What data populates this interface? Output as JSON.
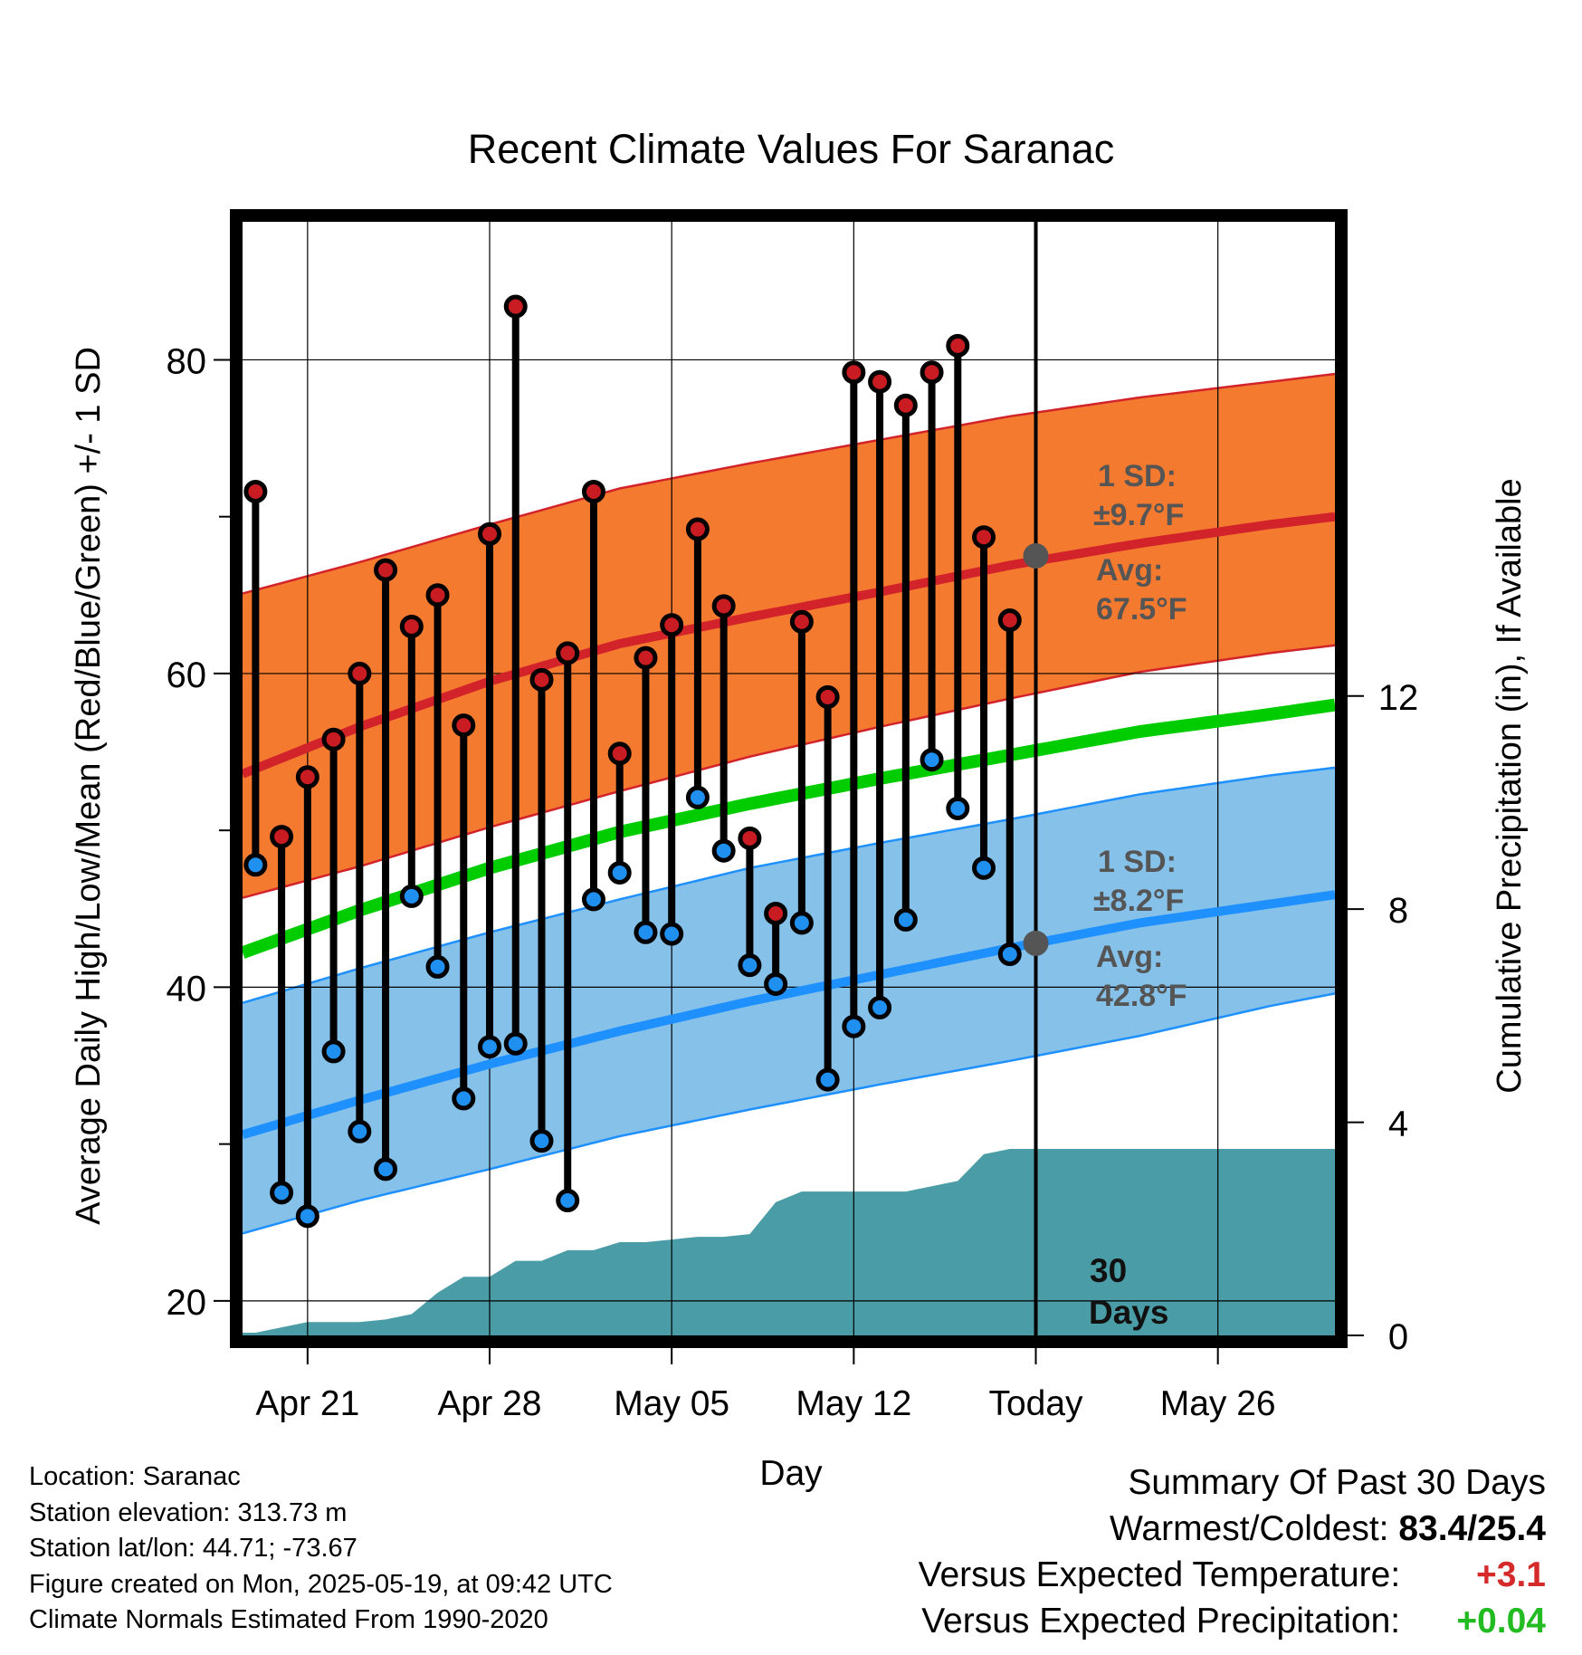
{
  "chart_data": {
    "type": "line",
    "title": "Recent Climate Values For Saranac",
    "xlabel": "Day",
    "ylabel": "Average Daily High/Low/Mean (Red/Blue/Green) +/- 1 SD",
    "y2label": "Cumulative Precipitation (in), If Available",
    "x_range_days": [
      -30.5,
      11.5
    ],
    "ylim": [
      17.8,
      88.8
    ],
    "y2lim": [
      0,
      20.9
    ],
    "y_ticks": [
      20,
      40,
      60,
      80
    ],
    "y_minor_ticks": [
      30,
      50,
      70
    ],
    "y2_ticks": [
      0,
      4,
      8,
      12
    ],
    "x_ticks": [
      {
        "day": -28,
        "label": "Apr 21"
      },
      {
        "day": -21,
        "label": "Apr 28"
      },
      {
        "day": -14,
        "label": "May 05"
      },
      {
        "day": -7,
        "label": "May 12"
      },
      {
        "day": 0,
        "label": "Today"
      },
      {
        "day": 7,
        "label": "May 26"
      }
    ],
    "grid": true,
    "normals": {
      "x": [
        -30.5,
        -26,
        -21,
        -16,
        -11,
        -6,
        -1,
        4,
        9,
        11.5
      ],
      "high_mean": [
        53.6,
        56.6,
        59.5,
        61.9,
        63.6,
        65.2,
        66.9,
        68.3,
        69.5,
        70.0
      ],
      "high_upper": [
        65.1,
        67.1,
        69.5,
        71.8,
        73.4,
        74.9,
        76.4,
        77.6,
        78.6,
        79.1
      ],
      "high_lower": [
        45.7,
        47.7,
        50.2,
        52.5,
        54.7,
        56.6,
        58.4,
        60.1,
        61.3,
        61.8
      ],
      "mean": [
        42.2,
        44.9,
        47.6,
        49.9,
        51.7,
        53.3,
        54.8,
        56.3,
        57.4,
        58.0
      ],
      "low_mean": [
        30.6,
        32.8,
        35.1,
        37.2,
        39.1,
        40.8,
        42.5,
        44.1,
        45.3,
        45.9
      ],
      "low_upper": [
        39.0,
        41.2,
        43.5,
        45.6,
        47.6,
        49.2,
        50.7,
        52.3,
        53.5,
        54.0
      ],
      "low_lower": [
        24.3,
        26.4,
        28.4,
        30.5,
        32.2,
        33.8,
        35.3,
        36.9,
        38.8,
        39.6
      ]
    },
    "series": [
      {
        "name": "High",
        "color": "#c91c22",
        "x": [
          -30,
          -29,
          -28,
          -27,
          -26,
          -25,
          -24,
          -23,
          -22,
          -21,
          -20,
          -19,
          -18,
          -17,
          -16,
          -15,
          -14,
          -13,
          -12,
          -11,
          -10,
          -9,
          -8,
          -7,
          -6,
          -5,
          -4,
          -3,
          -2,
          -1
        ],
        "values": [
          71.6,
          49.6,
          53.4,
          55.8,
          60.0,
          66.6,
          63.0,
          65.0,
          56.7,
          68.9,
          83.4,
          59.6,
          61.3,
          71.6,
          54.9,
          61.0,
          63.1,
          69.2,
          64.3,
          49.5,
          44.7,
          63.3,
          58.5,
          79.2,
          78.6,
          77.1,
          79.2,
          80.9,
          68.7,
          63.4
        ]
      },
      {
        "name": "Low",
        "color": "#1f8ff0",
        "x": [
          -30,
          -29,
          -28,
          -27,
          -26,
          -25,
          -24,
          -23,
          -22,
          -21,
          -20,
          -19,
          -18,
          -17,
          -16,
          -15,
          -14,
          -13,
          -12,
          -11,
          -10,
          -9,
          -8,
          -7,
          -6,
          -5,
          -4,
          -3,
          -2,
          -1
        ],
        "values": [
          47.8,
          26.9,
          25.4,
          35.9,
          30.8,
          28.4,
          45.8,
          41.3,
          32.9,
          36.2,
          36.4,
          30.2,
          26.4,
          45.6,
          47.3,
          43.5,
          43.4,
          52.1,
          48.7,
          41.4,
          40.2,
          44.1,
          34.1,
          37.5,
          38.7,
          44.3,
          54.5,
          51.4,
          47.6,
          42.1
        ]
      },
      {
        "name": "Cumulative Precipitation",
        "axis": "y2",
        "color": "#4a9ca6",
        "x": [
          -30.5,
          -30,
          -29,
          -28,
          -27,
          -26,
          -25,
          -24,
          -23,
          -22,
          -21,
          -20,
          -19,
          -18,
          -17,
          -16,
          -15,
          -14,
          -13,
          -12,
          -11,
          -10,
          -9,
          -8,
          -7,
          -6,
          -5,
          -4,
          -3,
          -2,
          -1,
          0,
          11.5
        ],
        "values": [
          0.05,
          0.05,
          0.15,
          0.25,
          0.25,
          0.25,
          0.3,
          0.4,
          0.8,
          1.1,
          1.1,
          1.4,
          1.4,
          1.6,
          1.6,
          1.75,
          1.75,
          1.8,
          1.85,
          1.85,
          1.9,
          2.5,
          2.7,
          2.7,
          2.7,
          2.7,
          2.7,
          2.8,
          2.9,
          3.4,
          3.5,
          3.5,
          3.5
        ]
      }
    ],
    "annotations": {
      "high_sd": "1 SD:",
      "high_sd_value": "±9.7°F",
      "high_avg": "Avg:",
      "high_avg_value": "67.5°F",
      "low_sd": "1 SD:",
      "low_sd_value": "±8.2°F",
      "low_avg": "Avg:",
      "low_avg_value": "42.8°F",
      "today_high_avg": 67.5,
      "today_low_avg": 42.8,
      "period_line1": "30",
      "period_line2": "Days"
    },
    "colors": {
      "high_band": "#f47a30",
      "high_line": "#d2232a",
      "low_band": "#85c1e9",
      "low_line": "#1e90ff",
      "mean_line": "#00cc00",
      "precip": "#4a9ca6",
      "annotation_text": "#555555"
    }
  },
  "footer": {
    "location": "Location: Saranac",
    "elevation": "Station elevation: 313.73 m",
    "latlon": "Station lat/lon: 44.71; -73.67",
    "created": "Figure created on Mon, 2025-05-19, at 09:42 UTC",
    "normals": "Climate Normals Estimated From 1990-2020"
  },
  "summary": {
    "title": "Summary Of Past 30 Days",
    "warmest_coldest_label": "Warmest/Coldest:",
    "warmest_coldest_value": "83.4/25.4",
    "temp_label": "Versus Expected Temperature:",
    "temp_value": "+3.1",
    "temp_color": "#d42a2a",
    "precip_label": "Versus Expected Precipitation:",
    "precip_value": "+0.04",
    "precip_color": "#22bb22"
  }
}
